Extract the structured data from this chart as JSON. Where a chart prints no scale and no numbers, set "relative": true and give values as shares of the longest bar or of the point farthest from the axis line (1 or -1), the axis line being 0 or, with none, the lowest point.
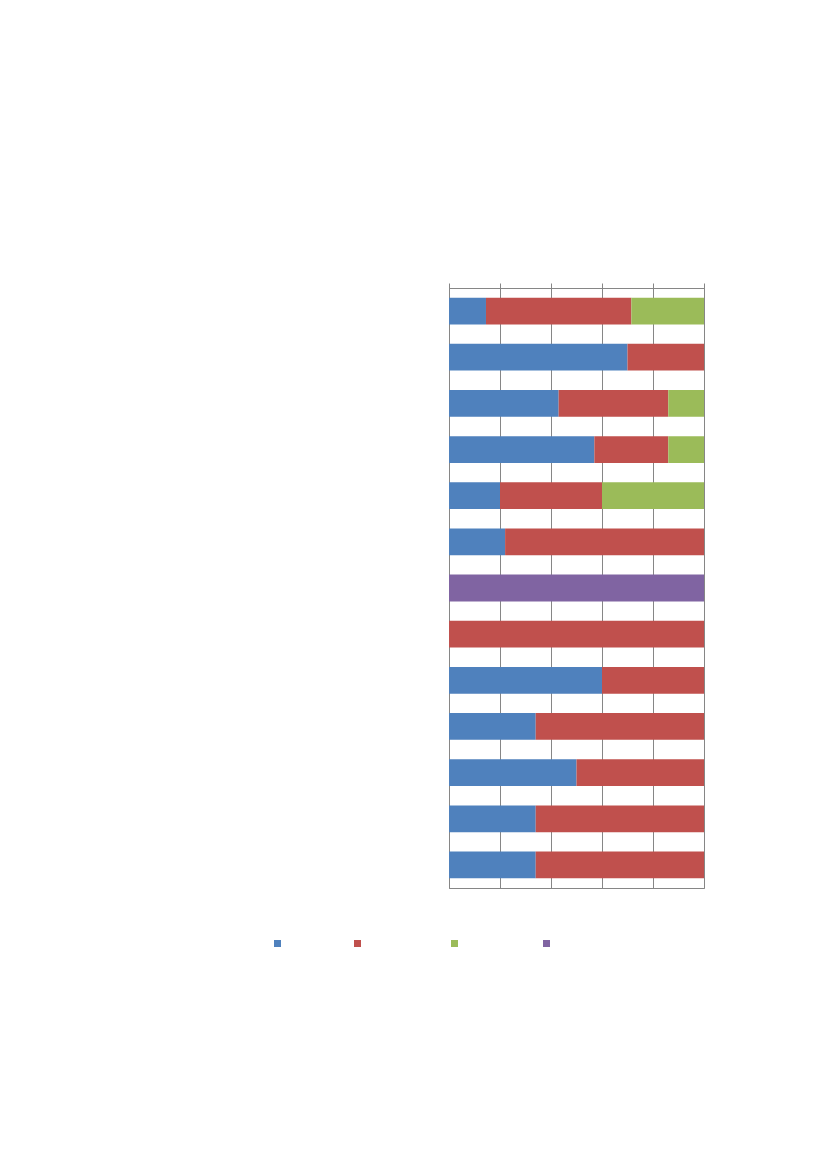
{
  "chart_data": {
    "type": "bar",
    "orientation": "horizontal",
    "stacked": true,
    "relative": true,
    "grid": "x",
    "categories": [
      null,
      null,
      null,
      null,
      null,
      null,
      null,
      null,
      null,
      null,
      null,
      null,
      null
    ],
    "series": [
      {
        "color": "#4f81bd",
        "values": [
          0.145,
          0.7,
          0.43,
          0.57,
          0.2,
          0.22,
          null,
          null,
          0.6,
          0.34,
          0.5,
          0.34,
          0.34
        ]
      },
      {
        "color": "#c0504d",
        "values": [
          0.57,
          0.3,
          0.43,
          0.29,
          0.4,
          0.78,
          null,
          1,
          0.4,
          0.66,
          0.5,
          0.66,
          0.66
        ]
      },
      {
        "color": "#9bbb59",
        "values": [
          0.285,
          null,
          0.14,
          0.14,
          0.4,
          null,
          null,
          null,
          null,
          null,
          null,
          null,
          null
        ]
      },
      {
        "color": "#8064a2",
        "values": [
          null,
          null,
          null,
          null,
          null,
          null,
          1,
          null,
          null,
          null,
          null,
          null,
          null
        ]
      }
    ]
  }
}
